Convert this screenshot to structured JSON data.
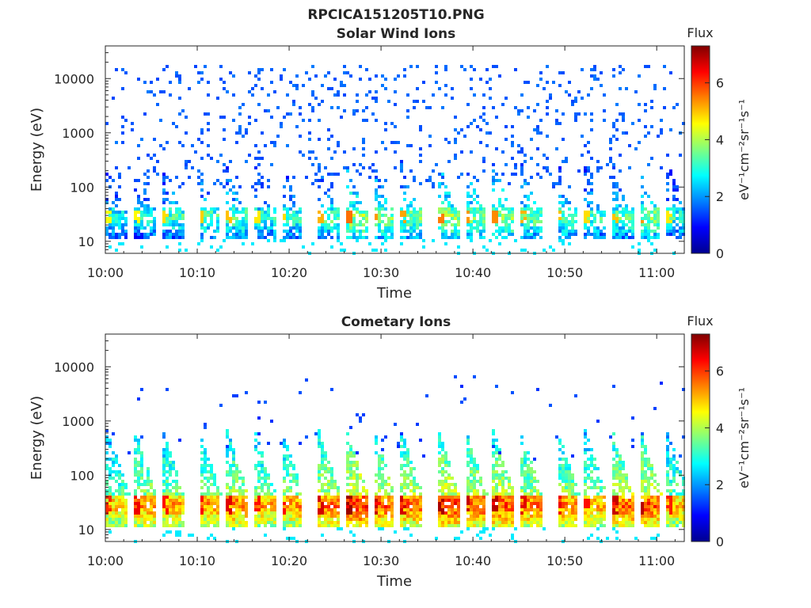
{
  "figure_title": "RPCICA151205T10.PNG",
  "colors": {
    "colormap": "jet",
    "axis": "#262626",
    "background": "#ffffff"
  },
  "chart_data": [
    {
      "type": "heatmap",
      "title": "Solar Wind Ions",
      "xlabel": "Time",
      "ylabel": "Energy (eV)",
      "y_scale": "log",
      "xlim": [
        "10:00",
        "11:03"
      ],
      "ylim": [
        6,
        40000
      ],
      "x_ticks": [
        "10:00",
        "10:10",
        "10:20",
        "10:30",
        "10:40",
        "10:50",
        "11:00"
      ],
      "y_ticks": [
        "10",
        "100",
        "1000",
        "10000"
      ],
      "colorbar": {
        "title": "Flux",
        "label": "eV⁻¹cm⁻²sr⁻¹s⁻¹",
        "range": [
          0,
          7.3
        ],
        "ticks": [
          "0",
          "2",
          "4",
          "6"
        ]
      },
      "sweep_times": [
        "10:00",
        "10:03",
        "10:06",
        "10:10",
        "10:13",
        "10:16",
        "10:19",
        "10:23",
        "10:26",
        "10:29",
        "10:32",
        "10:36",
        "10:39",
        "10:42",
        "10:45",
        "10:49",
        "10:52",
        "10:55",
        "10:58",
        "11:01"
      ],
      "sweep_peak_flux": [
        4.2,
        4.3,
        4.5,
        4.6,
        4.7,
        4.4,
        4.5,
        4.8,
        5.3,
        5.0,
        4.9,
        5.2,
        5.0,
        5.1,
        4.8,
        4.7,
        4.5,
        4.7,
        5.0,
        4.4
      ],
      "sweep_peak_energy_eV": 30,
      "background_energy_range_eV": [
        100,
        20000
      ],
      "background_flux": 1.4,
      "grid": false
    },
    {
      "type": "heatmap",
      "title": "Cometary Ions",
      "xlabel": "Time",
      "ylabel": "Energy (eV)",
      "y_scale": "log",
      "xlim": [
        "10:00",
        "11:03"
      ],
      "ylim": [
        6,
        40000
      ],
      "x_ticks": [
        "10:00",
        "10:10",
        "10:20",
        "10:30",
        "10:40",
        "10:50",
        "11:00"
      ],
      "y_ticks": [
        "10",
        "100",
        "1000",
        "10000"
      ],
      "colorbar": {
        "title": "Flux",
        "label": "eV⁻¹cm⁻²sr⁻¹s⁻¹",
        "range": [
          0,
          7.3
        ],
        "ticks": [
          "0",
          "2",
          "4",
          "6"
        ]
      },
      "sweep_times": [
        "10:00",
        "10:03",
        "10:06",
        "10:10",
        "10:13",
        "10:16",
        "10:19",
        "10:23",
        "10:26",
        "10:29",
        "10:32",
        "10:36",
        "10:39",
        "10:42",
        "10:45",
        "10:49",
        "10:52",
        "10:55",
        "10:58",
        "11:01"
      ],
      "sweep_peak_flux": [
        5.8,
        6.2,
        6.0,
        6.1,
        6.3,
        6.0,
        6.1,
        6.4,
        6.8,
        6.5,
        6.4,
        6.7,
        6.5,
        6.6,
        6.3,
        6.2,
        6.0,
        6.5,
        6.6,
        5.9
      ],
      "sweep_peak_energy_eV": 30,
      "background_energy_range_eV": [
        200,
        7000
      ],
      "background_flux": 1.2,
      "grid": false
    }
  ]
}
